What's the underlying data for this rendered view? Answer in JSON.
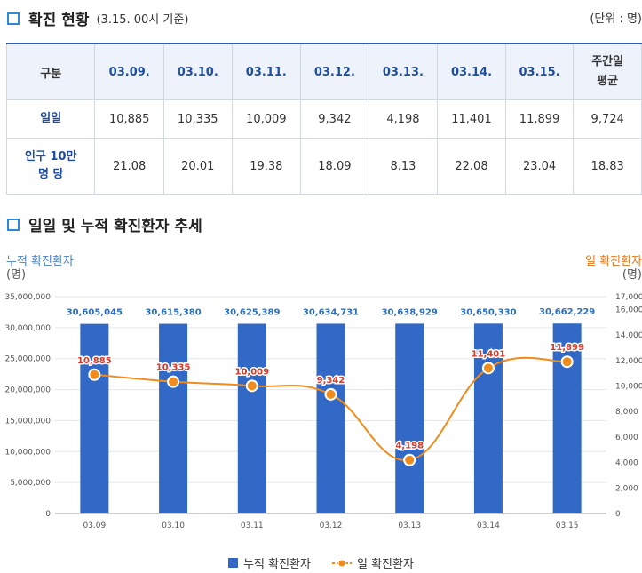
{
  "section1": {
    "title": "확진 현황",
    "subtitle": "(3.15. 00시 기준)",
    "unit": "(단위 : 명)"
  },
  "table": {
    "headers": [
      "구분",
      "03.09.",
      "03.10.",
      "03.11.",
      "03.12.",
      "03.13.",
      "03.14.",
      "03.15.",
      "주간일 평균"
    ],
    "rows": [
      {
        "label": "일일",
        "values": [
          "10,885",
          "10,335",
          "10,009",
          "9,342",
          "4,198",
          "11,401",
          "11,899",
          "9,724"
        ]
      },
      {
        "label": "인구 10만 명 당",
        "values": [
          "21.08",
          "20.01",
          "19.38",
          "18.09",
          "8.13",
          "22.08",
          "23.04",
          "18.83"
        ]
      }
    ]
  },
  "section2": {
    "title": "일일 및 누적 확진환자 추세"
  },
  "colors": {
    "bar": "#3268c6",
    "line": "#f08c1c",
    "bar_label": "#2f6fb8",
    "line_label": "#d23a2a",
    "left_axis": "#4a7fc1",
    "right_axis": "#e8771e"
  },
  "chart_data": {
    "type": "bar",
    "categories": [
      "03.09",
      "03.10",
      "03.11",
      "03.12",
      "03.13",
      "03.14",
      "03.15"
    ],
    "series": [
      {
        "name": "누적 확진환자",
        "type": "bar",
        "axis": "left",
        "values": [
          30605045,
          30615380,
          30625389,
          30634731,
          30638929,
          30650330,
          30662229
        ],
        "labels": [
          "30,605,045",
          "30,615,380",
          "30,625,389",
          "30,634,731",
          "30,638,929",
          "30,650,330",
          "30,662,229"
        ]
      },
      {
        "name": "일 확진환자",
        "type": "line",
        "axis": "right",
        "values": [
          10885,
          10335,
          10009,
          9342,
          4198,
          11401,
          11899
        ],
        "labels": [
          "10,885",
          "10,335",
          "10,009",
          "9,342",
          "4,198",
          "11,401",
          "11,899"
        ]
      }
    ],
    "left_axis": {
      "label": "누적 확진환자",
      "unit": "(명)",
      "ylim": [
        0,
        35000000
      ],
      "ticks": [
        0,
        5000000,
        10000000,
        15000000,
        20000000,
        25000000,
        30000000,
        35000000
      ],
      "tick_labels": [
        "0",
        "5,000,000",
        "10,000,000",
        "15,000,000",
        "20,000,000",
        "25,000,000",
        "30,000,000",
        "35,000,000"
      ]
    },
    "right_axis": {
      "label": "일 확진환자",
      "unit": "(명)",
      "ylim": [
        0,
        17000
      ],
      "ticks": [
        0,
        2000,
        4000,
        6000,
        8000,
        10000,
        12000,
        14000,
        16000,
        17000
      ],
      "tick_labels": [
        "0",
        "2,000",
        "4,000",
        "6,000",
        "8,000",
        "10,000",
        "12,000",
        "14,000",
        "16,000",
        "17,000"
      ]
    },
    "grid": true,
    "legend_position": "bottom-center"
  }
}
